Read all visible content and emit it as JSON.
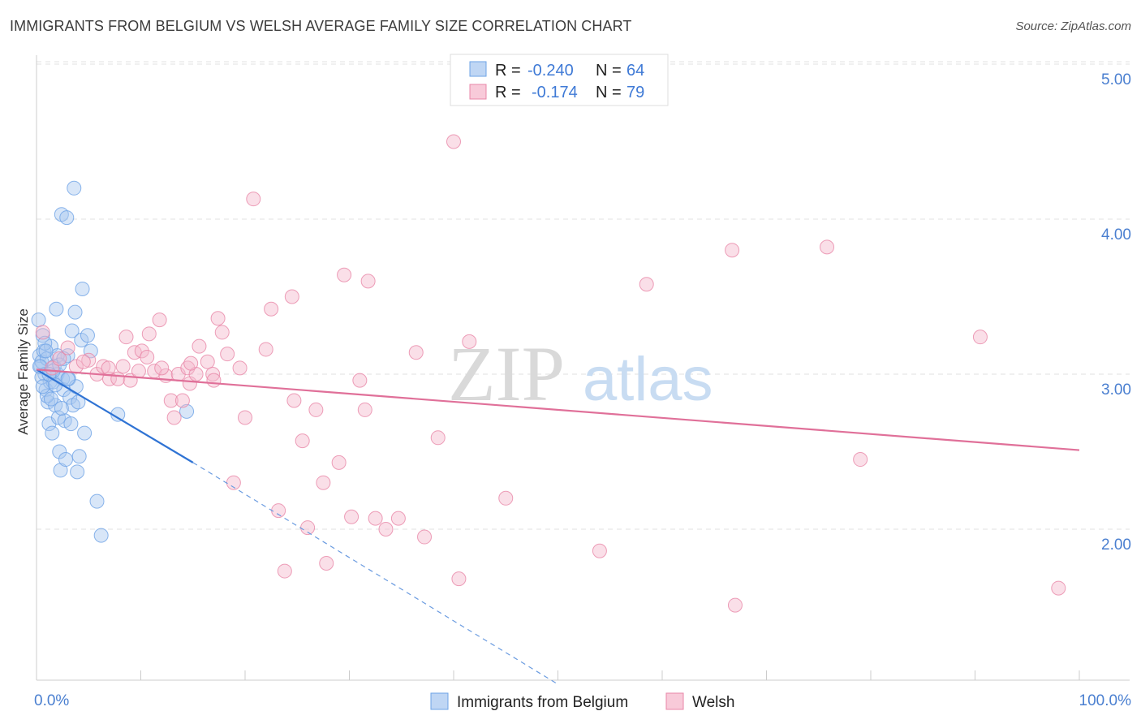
{
  "header": {
    "title": "IMMIGRANTS FROM BELGIUM VS WELSH AVERAGE FAMILY SIZE CORRELATION CHART",
    "source": "Source: ZipAtlas.com"
  },
  "watermark": {
    "zip": "ZIP",
    "atlas": "atlas"
  },
  "legend": {
    "rows": [
      {
        "r_label": "R =",
        "r_value": "-0.240",
        "n_label": "N =",
        "n_value": "64",
        "color": "#a9c8f0"
      },
      {
        "r_label": "R =",
        "r_value": "-0.174",
        "n_label": "N =",
        "n_value": "79",
        "color": "#f5b8cc"
      }
    ]
  },
  "chart_data": {
    "type": "scatter",
    "title": "IMMIGRANTS FROM BELGIUM VS WELSH AVERAGE FAMILY SIZE CORRELATION CHART",
    "xlabel": "",
    "ylabel": "Average Family Size",
    "xlim": [
      0,
      100
    ],
    "ylim": [
      1.05,
      5.1
    ],
    "y_ticks": [
      2.0,
      3.0,
      4.0,
      5.0
    ],
    "y_tick_labels": [
      "2.00",
      "3.00",
      "4.00",
      "5.00"
    ],
    "x_tick_labels": [
      "0.0%",
      "100.0%"
    ],
    "grid": true,
    "legend_position": "top-center",
    "series": [
      {
        "name": "Immigrants from Belgium",
        "color": "#6ea3e6",
        "fill": "#a9c8f0",
        "trend": {
          "x0": 0,
          "y0": 3.03,
          "x1": 15,
          "y1": 2.43,
          "dashed_to_x": 50,
          "dashed_to_y": 1.0
        },
        "points": [
          [
            0.2,
            3.35
          ],
          [
            0.3,
            3.12
          ],
          [
            0.4,
            3.05
          ],
          [
            0.5,
            3.08
          ],
          [
            0.6,
            3.25
          ],
          [
            0.7,
            3.15
          ],
          [
            0.8,
            3.0
          ],
          [
            0.9,
            2.9
          ],
          [
            1.0,
            3.1
          ],
          [
            1.1,
            2.82
          ],
          [
            1.2,
            2.68
          ],
          [
            1.3,
            2.95
          ],
          [
            1.4,
            3.18
          ],
          [
            1.5,
            2.62
          ],
          [
            1.6,
            2.95
          ],
          [
            1.7,
            3.05
          ],
          [
            1.8,
            2.8
          ],
          [
            1.9,
            3.42
          ],
          [
            2.0,
            3.0
          ],
          [
            2.1,
            2.72
          ],
          [
            2.2,
            2.5
          ],
          [
            2.3,
            2.38
          ],
          [
            2.4,
            4.03
          ],
          [
            2.5,
            2.97
          ],
          [
            2.6,
            2.9
          ],
          [
            2.7,
            2.7
          ],
          [
            2.8,
            2.45
          ],
          [
            2.9,
            4.01
          ],
          [
            3.0,
            3.12
          ],
          [
            3.1,
            2.97
          ],
          [
            3.2,
            2.85
          ],
          [
            3.3,
            2.68
          ],
          [
            3.4,
            3.28
          ],
          [
            3.5,
            2.8
          ],
          [
            3.6,
            4.2
          ],
          [
            3.7,
            3.4
          ],
          [
            3.8,
            2.92
          ],
          [
            3.9,
            2.37
          ],
          [
            4.0,
            2.82
          ],
          [
            4.1,
            2.47
          ],
          [
            4.3,
            3.22
          ],
          [
            4.4,
            3.55
          ],
          [
            4.6,
            2.62
          ],
          [
            4.9,
            3.25
          ],
          [
            5.2,
            3.15
          ],
          [
            5.8,
            2.18
          ],
          [
            6.2,
            1.96
          ],
          [
            7.8,
            2.74
          ],
          [
            14.4,
            2.76
          ],
          [
            0.5,
            2.98
          ],
          [
            0.8,
            3.2
          ],
          [
            1.0,
            2.86
          ],
          [
            1.6,
            3.02
          ],
          [
            2.0,
            3.12
          ],
          [
            2.4,
            2.78
          ],
          [
            0.3,
            3.05
          ],
          [
            0.6,
            2.92
          ],
          [
            1.2,
            3.0
          ],
          [
            1.8,
            2.93
          ],
          [
            2.2,
            3.06
          ],
          [
            0.9,
            3.15
          ],
          [
            1.4,
            2.84
          ],
          [
            2.6,
            3.1
          ],
          [
            3.0,
            2.97
          ]
        ]
      },
      {
        "name": "Welsh",
        "color": "#e887a8",
        "fill": "#f5b8cc",
        "trend": {
          "x0": 0,
          "y0": 3.03,
          "x1": 100,
          "y1": 2.51
        },
        "points": [
          [
            0.6,
            3.27
          ],
          [
            1.5,
            3.04
          ],
          [
            2.2,
            3.1
          ],
          [
            3.0,
            3.17
          ],
          [
            3.8,
            3.05
          ],
          [
            5.0,
            3.09
          ],
          [
            5.8,
            3.0
          ],
          [
            6.4,
            3.05
          ],
          [
            7.0,
            2.97
          ],
          [
            7.8,
            2.97
          ],
          [
            8.3,
            3.05
          ],
          [
            8.6,
            3.24
          ],
          [
            9.0,
            2.96
          ],
          [
            9.4,
            3.14
          ],
          [
            10.1,
            3.15
          ],
          [
            10.6,
            3.11
          ],
          [
            10.8,
            3.26
          ],
          [
            11.3,
            3.02
          ],
          [
            11.8,
            3.35
          ],
          [
            12.4,
            2.99
          ],
          [
            12.9,
            2.83
          ],
          [
            13.2,
            2.72
          ],
          [
            13.6,
            3.0
          ],
          [
            14.0,
            2.83
          ],
          [
            14.5,
            3.04
          ],
          [
            14.7,
            2.94
          ],
          [
            15.3,
            3.0
          ],
          [
            15.6,
            3.18
          ],
          [
            16.4,
            3.08
          ],
          [
            16.9,
            3.0
          ],
          [
            17.4,
            3.36
          ],
          [
            17.8,
            3.27
          ],
          [
            18.3,
            3.13
          ],
          [
            18.9,
            2.3
          ],
          [
            19.5,
            3.04
          ],
          [
            20.0,
            2.72
          ],
          [
            20.8,
            4.13
          ],
          [
            22.0,
            3.16
          ],
          [
            22.5,
            3.42
          ],
          [
            23.2,
            2.12
          ],
          [
            23.8,
            1.73
          ],
          [
            24.5,
            3.5
          ],
          [
            24.7,
            2.83
          ],
          [
            25.5,
            2.57
          ],
          [
            26.0,
            2.01
          ],
          [
            26.8,
            2.77
          ],
          [
            27.5,
            2.3
          ],
          [
            27.8,
            1.78
          ],
          [
            29.0,
            2.43
          ],
          [
            29.5,
            3.64
          ],
          [
            30.2,
            2.08
          ],
          [
            31.0,
            2.96
          ],
          [
            31.5,
            2.77
          ],
          [
            31.8,
            3.6
          ],
          [
            32.5,
            2.07
          ],
          [
            33.5,
            2.0
          ],
          [
            34.7,
            2.07
          ],
          [
            36.4,
            3.14
          ],
          [
            37.2,
            1.95
          ],
          [
            38.5,
            2.59
          ],
          [
            40.0,
            4.5
          ],
          [
            40.5,
            1.68
          ],
          [
            41.5,
            3.21
          ],
          [
            45.0,
            2.2
          ],
          [
            48.0,
            5.0
          ],
          [
            54.0,
            1.86
          ],
          [
            58.5,
            3.58
          ],
          [
            66.7,
            3.8
          ],
          [
            67.0,
            1.51
          ],
          [
            75.8,
            3.82
          ],
          [
            79.0,
            2.45
          ],
          [
            90.5,
            3.24
          ],
          [
            98.0,
            1.62
          ],
          [
            4.5,
            3.08
          ],
          [
            6.9,
            3.04
          ],
          [
            9.8,
            3.02
          ],
          [
            12.0,
            3.04
          ],
          [
            14.8,
            3.07
          ],
          [
            17.0,
            2.96
          ]
        ]
      }
    ]
  }
}
